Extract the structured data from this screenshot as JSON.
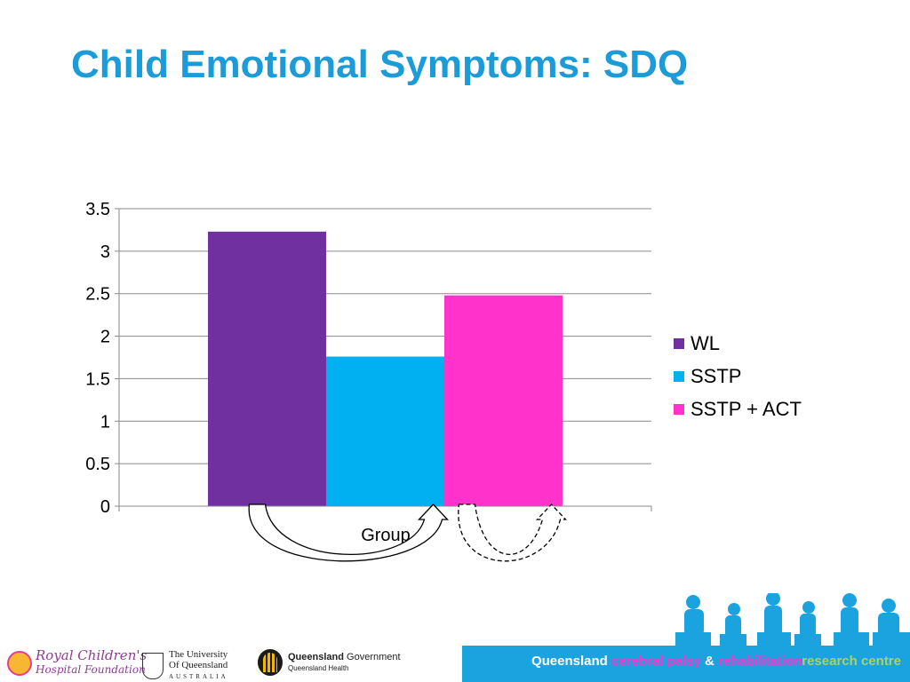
{
  "slide": {
    "title": "Child Emotional Symptoms: SDQ"
  },
  "chart_data": {
    "type": "bar",
    "categories": [
      "Group"
    ],
    "xlabel": "Group",
    "ylim": [
      0,
      3.5
    ],
    "yticks": [
      0,
      0.5,
      1,
      1.5,
      2,
      2.5,
      3,
      3.5
    ],
    "ytick_labels": [
      "0",
      "0.5",
      "1",
      "1.5",
      "2",
      "2.5",
      "3",
      "3.5"
    ],
    "grid": true,
    "legend_position": "right",
    "series": [
      {
        "name": "WL",
        "values": [
          3.23
        ],
        "color": "#7030A0"
      },
      {
        "name": "SSTP",
        "values": [
          1.76
        ],
        "color": "#00B0F0"
      },
      {
        "name": "SSTP + ACT",
        "values": [
          2.48
        ],
        "color": "#FF33CC"
      }
    ]
  },
  "annotations": {
    "arrows": [
      {
        "from": "WL",
        "to": "SSTP",
        "style": "solid"
      },
      {
        "from": "SSTP + ACT",
        "to": "SSTP + ACT",
        "style": "dashed"
      }
    ]
  },
  "footer": {
    "logo_rchf_line1": "Royal Children's",
    "logo_rchf_line2": "Hospital Foundation",
    "logo_uq_line1": "The University",
    "logo_uq_line2": "Of Queensland",
    "logo_uq_line3": "AUSTRALIA",
    "logo_qg_name": "Queensland",
    "logo_qg_suffix": "Government",
    "logo_qg_sub": "Queensland Health",
    "centre": {
      "word1": "Queensland",
      "word2": "cerebral palsy",
      "word3": "&",
      "word4": "rehabilitation",
      "word5": "research centre",
      "colors": {
        "word1": "#FFFFFF",
        "word2": "#FF33CC",
        "word3": "#FFFFFF",
        "word4": "#FF33CC",
        "word5": "#A6D26E"
      }
    },
    "background": "#1BA3E0"
  },
  "colors": {
    "title": "#1B9BD8"
  }
}
